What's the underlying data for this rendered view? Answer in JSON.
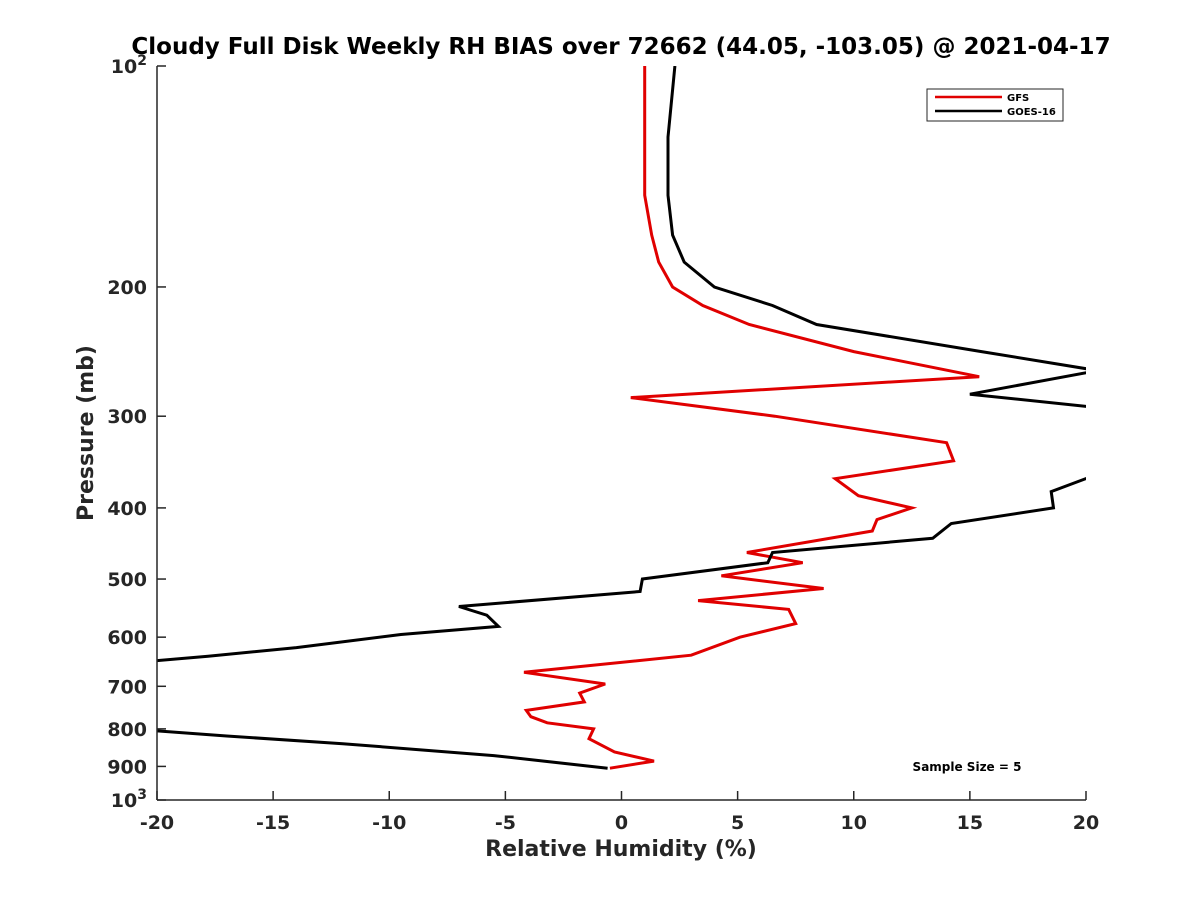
{
  "chart_data": {
    "type": "line",
    "title": "Cloudy Full Disk Weekly RH BIAS over 72662 (44.05, -103.05) @ 2021-04-17",
    "xlabel": "Relative Humidity (%)",
    "ylabel": "Pressure (mb)",
    "xlim": [
      -20,
      20
    ],
    "ylim": [
      100,
      1000
    ],
    "y_scale": "log",
    "y_reversed": true,
    "x_ticks": [
      -20,
      -15,
      -10,
      -5,
      0,
      5,
      10,
      15,
      20
    ],
    "x_tick_labels": [
      "-20",
      "-15",
      "-10",
      "-5",
      "0",
      "5",
      "10",
      "15",
      "20"
    ],
    "y_ticks": [
      100,
      200,
      300,
      400,
      500,
      600,
      700,
      800,
      900,
      1000
    ],
    "y_tick_labels": [
      {
        "text": "10",
        "sup": "2"
      },
      {
        "text": "200",
        "sup": ""
      },
      {
        "text": "300",
        "sup": ""
      },
      {
        "text": "400",
        "sup": ""
      },
      {
        "text": "500",
        "sup": ""
      },
      {
        "text": "600",
        "sup": ""
      },
      {
        "text": "700",
        "sup": ""
      },
      {
        "text": "800",
        "sup": ""
      },
      {
        "text": "900",
        "sup": ""
      },
      {
        "text": "10",
        "sup": "3"
      }
    ],
    "grid": false,
    "legend_position": "top-right",
    "annotation": "Sample Size = 5",
    "series": [
      {
        "name": "GFS",
        "color": "#e00000",
        "points": [
          {
            "x": 1.0,
            "y": 100
          },
          {
            "x": 1.0,
            "y": 125
          },
          {
            "x": 1.0,
            "y": 150
          },
          {
            "x": 1.3,
            "y": 170
          },
          {
            "x": 1.6,
            "y": 185
          },
          {
            "x": 2.2,
            "y": 200
          },
          {
            "x": 3.5,
            "y": 212
          },
          {
            "x": 5.5,
            "y": 225
          },
          {
            "x": 10.0,
            "y": 245
          },
          {
            "x": 15.4,
            "y": 265
          },
          {
            "x": 0.4,
            "y": 283
          },
          {
            "x": 6.6,
            "y": 300
          },
          {
            "x": 14.0,
            "y": 326
          },
          {
            "x": 14.3,
            "y": 345
          },
          {
            "x": 9.2,
            "y": 365
          },
          {
            "x": 10.2,
            "y": 385
          },
          {
            "x": 12.5,
            "y": 400
          },
          {
            "x": 11.0,
            "y": 415
          },
          {
            "x": 10.8,
            "y": 430
          },
          {
            "x": 5.4,
            "y": 460
          },
          {
            "x": 7.8,
            "y": 475
          },
          {
            "x": 4.3,
            "y": 495
          },
          {
            "x": 8.7,
            "y": 515
          },
          {
            "x": 3.3,
            "y": 535
          },
          {
            "x": 7.2,
            "y": 550
          },
          {
            "x": 7.5,
            "y": 575
          },
          {
            "x": 5.1,
            "y": 600
          },
          {
            "x": 3.0,
            "y": 635
          },
          {
            "x": -4.2,
            "y": 670
          },
          {
            "x": -0.7,
            "y": 695
          },
          {
            "x": -1.8,
            "y": 715
          },
          {
            "x": -1.6,
            "y": 735
          },
          {
            "x": -4.1,
            "y": 755
          },
          {
            "x": -3.9,
            "y": 770
          },
          {
            "x": -3.2,
            "y": 785
          },
          {
            "x": -1.2,
            "y": 800
          },
          {
            "x": -1.4,
            "y": 825
          },
          {
            "x": -0.3,
            "y": 860
          },
          {
            "x": 1.4,
            "y": 885
          },
          {
            "x": -0.5,
            "y": 905
          }
        ]
      },
      {
        "name": "GOES-16",
        "color": "#000000",
        "points": [
          {
            "x": 2.3,
            "y": 100
          },
          {
            "x": 2.0,
            "y": 125
          },
          {
            "x": 2.0,
            "y": 150
          },
          {
            "x": 2.2,
            "y": 170
          },
          {
            "x": 2.7,
            "y": 185
          },
          {
            "x": 4.0,
            "y": 200
          },
          {
            "x": 6.5,
            "y": 212
          },
          {
            "x": 8.4,
            "y": 225
          },
          {
            "x": 15.5,
            "y": 245
          },
          {
            "x": 20.5,
            "y": 260
          },
          {
            "x": 15.0,
            "y": 280
          },
          {
            "x": 20.5,
            "y": 292
          },
          {
            "x": 21.0,
            "y": 355
          },
          {
            "x": 18.5,
            "y": 380
          },
          {
            "x": 18.6,
            "y": 400
          },
          {
            "x": 14.2,
            "y": 420
          },
          {
            "x": 13.4,
            "y": 440
          },
          {
            "x": 6.5,
            "y": 460
          },
          {
            "x": 6.3,
            "y": 475
          },
          {
            "x": 0.9,
            "y": 500
          },
          {
            "x": 0.8,
            "y": 520
          },
          {
            "x": -7.0,
            "y": 545
          },
          {
            "x": -5.8,
            "y": 560
          },
          {
            "x": -5.3,
            "y": 580
          },
          {
            "x": -9.5,
            "y": 595
          },
          {
            "x": -14.0,
            "y": 620
          },
          {
            "x": -17.8,
            "y": 637
          },
          {
            "x": -21.0,
            "y": 650
          },
          {
            "x": -21.0,
            "y": 800
          },
          {
            "x": -20.0,
            "y": 805
          },
          {
            "x": -17.0,
            "y": 818
          },
          {
            "x": -12.0,
            "y": 838
          },
          {
            "x": -5.5,
            "y": 870
          },
          {
            "x": -0.6,
            "y": 905
          }
        ]
      }
    ]
  }
}
